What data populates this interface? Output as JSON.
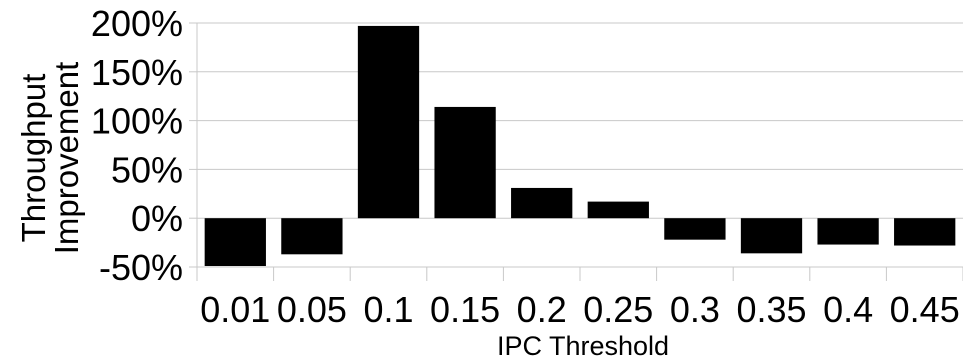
{
  "chart_data": {
    "type": "bar",
    "categories": [
      "0.01",
      "0.05",
      "0.1",
      "0.15",
      "0.2",
      "0.25",
      "0.3",
      "0.35",
      "0.4",
      "0.45"
    ],
    "values": [
      -49,
      -37,
      197,
      114,
      31,
      17,
      -22,
      -36,
      -27,
      -28
    ],
    "title": "",
    "xlabel": "IPC Threshold",
    "ylabel_lines": [
      "Throughput",
      "Improvement"
    ],
    "ylim": [
      -50,
      200
    ],
    "yticks": [
      -50,
      0,
      50,
      100,
      150,
      200
    ],
    "ytick_labels": [
      "-50%",
      "0%",
      "50%",
      "100%",
      "150%",
      "200%"
    ],
    "bar_color": "#000000",
    "grid": true,
    "grid_color": "#c8c8c8",
    "legend": "none"
  }
}
